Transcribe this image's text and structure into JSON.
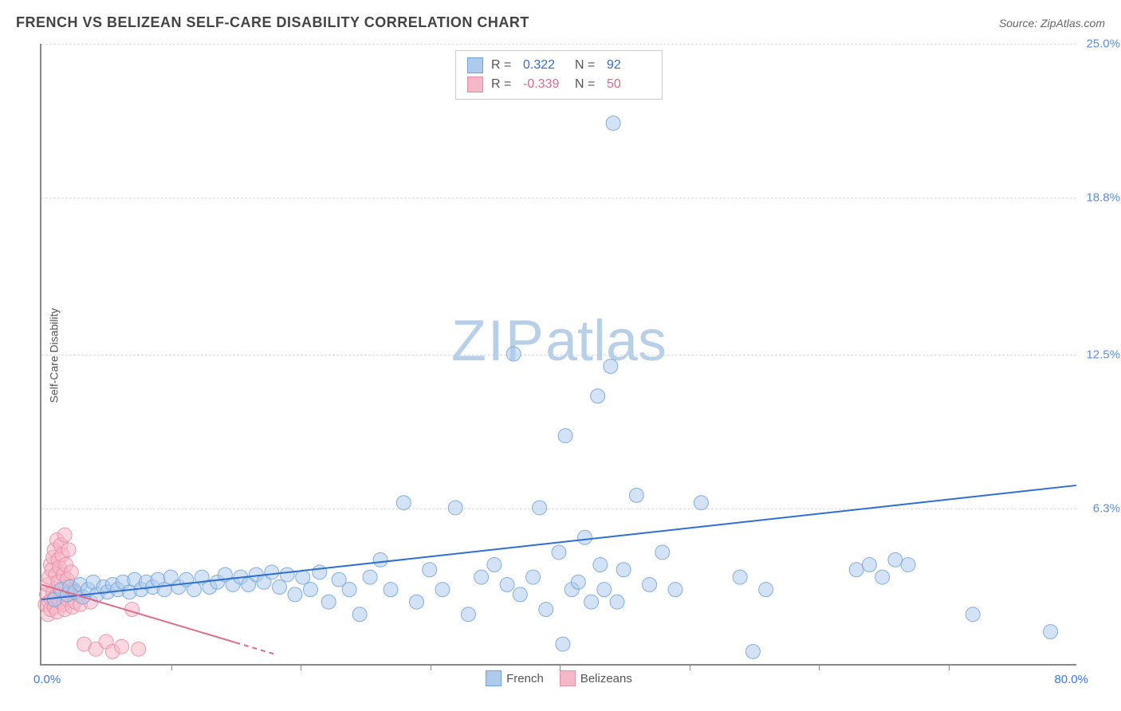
{
  "title": "FRENCH VS BELIZEAN SELF-CARE DISABILITY CORRELATION CHART",
  "source": "Source: ZipAtlas.com",
  "ylabel": "Self-Care Disability",
  "watermark": {
    "zip": "ZIP",
    "atlas": "atlas",
    "color": "#b8cfe8"
  },
  "chart": {
    "type": "scatter",
    "xlim": [
      0,
      80
    ],
    "ylim": [
      0,
      25
    ],
    "x_label_min": "0.0%",
    "x_label_max": "80.0%",
    "x_label_color": "#3b78e7",
    "xticks": [
      10,
      20,
      30,
      40,
      50,
      60,
      70
    ],
    "yticks": [
      {
        "value": 6.3,
        "label": "6.3%"
      },
      {
        "value": 12.5,
        "label": "12.5%"
      },
      {
        "value": 18.8,
        "label": "18.8%"
      },
      {
        "value": 25.0,
        "label": "25.0%"
      }
    ],
    "ytick_color": "#5a8fd8",
    "grid_color": "#dddddd",
    "axis_color": "#888888",
    "background": "#ffffff",
    "marker_radius": 9,
    "marker_opacity": 0.55,
    "marker_stroke_opacity": 0.85,
    "line_width": 2
  },
  "series": {
    "french": {
      "label": "French",
      "r_value": "0.322",
      "n_value": "92",
      "fill": "#aecbeb",
      "stroke": "#6fa3d8",
      "line_color": "#2f6fd0",
      "regression": {
        "x1": 0,
        "y1": 2.6,
        "x2": 80,
        "y2": 7.2
      },
      "points": [
        [
          1.0,
          2.6
        ],
        [
          1.5,
          3.0
        ],
        [
          2.0,
          2.8
        ],
        [
          2.2,
          3.1
        ],
        [
          2.6,
          2.9
        ],
        [
          3.0,
          3.2
        ],
        [
          3.2,
          2.7
        ],
        [
          3.6,
          3.0
        ],
        [
          4.0,
          3.3
        ],
        [
          4.3,
          2.8
        ],
        [
          4.8,
          3.1
        ],
        [
          5.1,
          2.9
        ],
        [
          5.5,
          3.2
        ],
        [
          5.9,
          3.0
        ],
        [
          6.3,
          3.3
        ],
        [
          6.8,
          2.9
        ],
        [
          7.2,
          3.4
        ],
        [
          7.7,
          3.0
        ],
        [
          8.1,
          3.3
        ],
        [
          8.6,
          3.1
        ],
        [
          9.0,
          3.4
        ],
        [
          9.5,
          3.0
        ],
        [
          10.0,
          3.5
        ],
        [
          10.6,
          3.1
        ],
        [
          11.2,
          3.4
        ],
        [
          11.8,
          3.0
        ],
        [
          12.4,
          3.5
        ],
        [
          13.0,
          3.1
        ],
        [
          13.6,
          3.3
        ],
        [
          14.2,
          3.6
        ],
        [
          14.8,
          3.2
        ],
        [
          15.4,
          3.5
        ],
        [
          16.0,
          3.2
        ],
        [
          16.6,
          3.6
        ],
        [
          17.2,
          3.3
        ],
        [
          17.8,
          3.7
        ],
        [
          18.4,
          3.1
        ],
        [
          19.0,
          3.6
        ],
        [
          19.6,
          2.8
        ],
        [
          20.2,
          3.5
        ],
        [
          20.8,
          3.0
        ],
        [
          21.5,
          3.7
        ],
        [
          22.2,
          2.5
        ],
        [
          23.0,
          3.4
        ],
        [
          23.8,
          3.0
        ],
        [
          24.6,
          2.0
        ],
        [
          25.4,
          3.5
        ],
        [
          26.2,
          4.2
        ],
        [
          27.0,
          3.0
        ],
        [
          28.0,
          6.5
        ],
        [
          29.0,
          2.5
        ],
        [
          30.0,
          3.8
        ],
        [
          31.0,
          3.0
        ],
        [
          32.0,
          6.3
        ],
        [
          33.0,
          2.0
        ],
        [
          34.0,
          3.5
        ],
        [
          35.0,
          4.0
        ],
        [
          36.0,
          3.2
        ],
        [
          36.5,
          12.5
        ],
        [
          37.0,
          2.8
        ],
        [
          38.0,
          3.5
        ],
        [
          38.5,
          6.3
        ],
        [
          39.0,
          2.2
        ],
        [
          40.0,
          4.5
        ],
        [
          40.3,
          0.8
        ],
        [
          40.5,
          9.2
        ],
        [
          41.0,
          3.0
        ],
        [
          41.5,
          3.3
        ],
        [
          42.0,
          5.1
        ],
        [
          42.5,
          2.5
        ],
        [
          43.0,
          10.8
        ],
        [
          43.2,
          4.0
        ],
        [
          43.5,
          3.0
        ],
        [
          44.0,
          12.0
        ],
        [
          44.2,
          21.8
        ],
        [
          44.5,
          2.5
        ],
        [
          45.0,
          3.8
        ],
        [
          46.0,
          6.8
        ],
        [
          47.0,
          3.2
        ],
        [
          48.0,
          4.5
        ],
        [
          49.0,
          3.0
        ],
        [
          51.0,
          6.5
        ],
        [
          54.0,
          3.5
        ],
        [
          55.0,
          0.5
        ],
        [
          56.0,
          3.0
        ],
        [
          63.0,
          3.8
        ],
        [
          64.0,
          4.0
        ],
        [
          65.0,
          3.5
        ],
        [
          66.0,
          4.2
        ],
        [
          67.0,
          4.0
        ],
        [
          72.0,
          2.0
        ],
        [
          78.0,
          1.3
        ]
      ]
    },
    "belizeans": {
      "label": "Belizeans",
      "r_value": "-0.339",
      "n_value": "50",
      "fill": "#f5b8c8",
      "stroke": "#e88ba3",
      "line_color": "#e06a8a",
      "regression": {
        "x1": 0,
        "y1": 3.2,
        "x2": 18,
        "y2": 0.4
      },
      "regression_dash_from": 15,
      "points": [
        [
          0.3,
          2.4
        ],
        [
          0.4,
          2.8
        ],
        [
          0.5,
          3.2
        ],
        [
          0.5,
          2.0
        ],
        [
          0.6,
          3.5
        ],
        [
          0.6,
          2.5
        ],
        [
          0.7,
          4.0
        ],
        [
          0.7,
          2.2
        ],
        [
          0.8,
          3.8
        ],
        [
          0.8,
          2.6
        ],
        [
          0.9,
          4.3
        ],
        [
          0.9,
          2.9
        ],
        [
          1.0,
          4.6
        ],
        [
          1.0,
          2.3
        ],
        [
          1.1,
          3.6
        ],
        [
          1.1,
          2.7
        ],
        [
          1.2,
          5.0
        ],
        [
          1.2,
          2.1
        ],
        [
          1.3,
          3.3
        ],
        [
          1.3,
          4.2
        ],
        [
          1.4,
          2.5
        ],
        [
          1.4,
          3.9
        ],
        [
          1.5,
          4.8
        ],
        [
          1.5,
          2.8
        ],
        [
          1.6,
          3.0
        ],
        [
          1.6,
          4.4
        ],
        [
          1.7,
          2.4
        ],
        [
          1.7,
          3.6
        ],
        [
          1.8,
          5.2
        ],
        [
          1.8,
          2.2
        ],
        [
          1.9,
          3.1
        ],
        [
          1.9,
          4.0
        ],
        [
          2.0,
          2.6
        ],
        [
          2.0,
          3.4
        ],
        [
          2.1,
          4.6
        ],
        [
          2.2,
          2.9
        ],
        [
          2.3,
          3.7
        ],
        [
          2.4,
          2.3
        ],
        [
          2.5,
          3.0
        ],
        [
          2.6,
          2.5
        ],
        [
          2.8,
          2.8
        ],
        [
          3.0,
          2.4
        ],
        [
          3.3,
          0.8
        ],
        [
          3.8,
          2.5
        ],
        [
          4.2,
          0.6
        ],
        [
          5.0,
          0.9
        ],
        [
          5.5,
          0.5
        ],
        [
          6.2,
          0.7
        ],
        [
          7.0,
          2.2
        ],
        [
          7.5,
          0.6
        ]
      ]
    }
  },
  "legend_top": {
    "r_label": "R =",
    "n_label": "N ="
  },
  "legend_bottom": {
    "french": "French",
    "belizeans": "Belizeans"
  }
}
